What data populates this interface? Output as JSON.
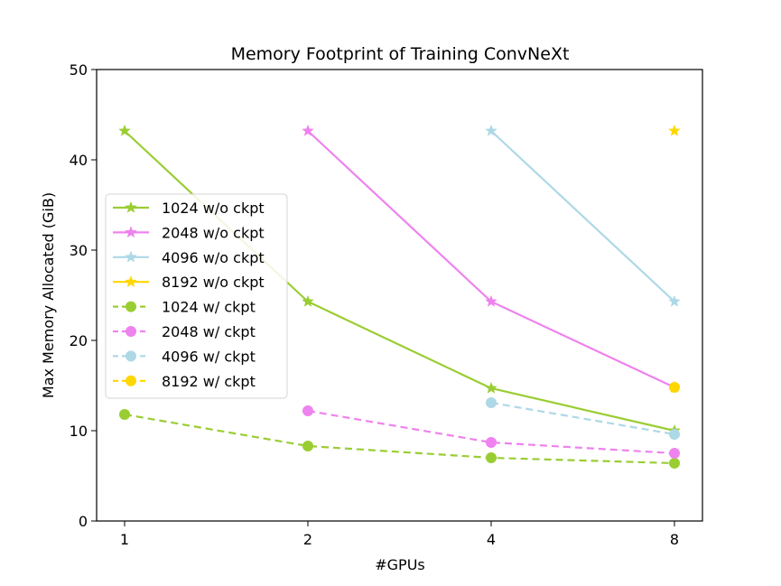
{
  "chart_data": {
    "type": "line",
    "title": "Memory Footprint of Training ConvNeXt",
    "xlabel": "#GPUs",
    "ylabel": "Max Memory Allocated (GiB)",
    "x_categories": [
      "1",
      "2",
      "4",
      "8"
    ],
    "ylim": [
      0,
      50
    ],
    "yticks": [
      0,
      10,
      20,
      30,
      40,
      50
    ],
    "grid": false,
    "legend_position": "center-left",
    "series": [
      {
        "name": "1024 w/o ckpt",
        "color": "#9acd32",
        "marker": "star",
        "linestyle": "solid",
        "values": [
          43.2,
          24.3,
          14.7,
          10.0
        ]
      },
      {
        "name": "2048 w/o ckpt",
        "color": "#ee82ee",
        "marker": "star",
        "linestyle": "solid",
        "values": [
          null,
          43.2,
          24.3,
          14.8
        ]
      },
      {
        "name": "4096 w/o ckpt",
        "color": "#add8e6",
        "marker": "star",
        "linestyle": "solid",
        "values": [
          null,
          null,
          43.2,
          24.3
        ]
      },
      {
        "name": "8192 w/o ckpt",
        "color": "#ffd700",
        "marker": "star",
        "linestyle": "solid",
        "values": [
          null,
          null,
          null,
          43.2
        ]
      },
      {
        "name": "1024 w/ ckpt",
        "color": "#9acd32",
        "marker": "circle",
        "linestyle": "dashed",
        "values": [
          11.8,
          8.3,
          7.0,
          6.4
        ]
      },
      {
        "name": "2048 w/ ckpt",
        "color": "#ee82ee",
        "marker": "circle",
        "linestyle": "dashed",
        "values": [
          null,
          12.2,
          8.7,
          7.5
        ]
      },
      {
        "name": "4096 w/ ckpt",
        "color": "#add8e6",
        "marker": "circle",
        "linestyle": "dashed",
        "values": [
          null,
          null,
          13.1,
          9.6
        ]
      },
      {
        "name": "8192 w/ ckpt",
        "color": "#ffd700",
        "marker": "circle",
        "linestyle": "dashed",
        "values": [
          null,
          null,
          null,
          14.8
        ]
      }
    ]
  }
}
